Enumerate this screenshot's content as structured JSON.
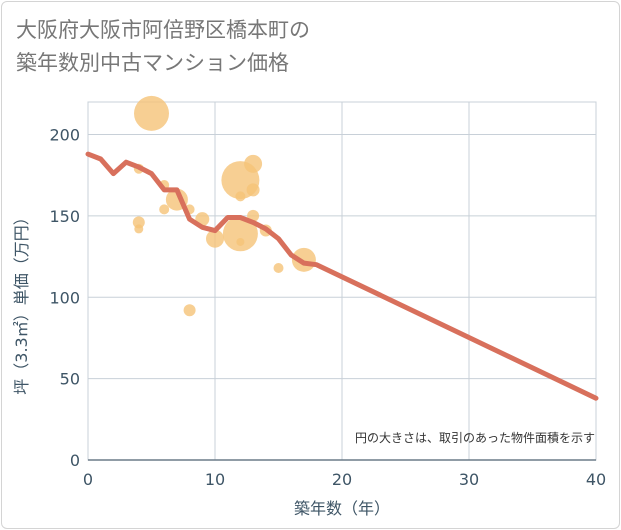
{
  "title_line1": "大阪府大阪市阿倍野区橋本町の",
  "title_line2": "築年数別中古マンション価格",
  "colors": {
    "bubble": "#f5c378",
    "line": "#d8705c",
    "grid": "#c8d0d8",
    "axis_text": "#3e5566"
  },
  "chart_data": {
    "type": "scatter",
    "xlabel": "築年数（年）",
    "ylabel": "坪（3.3㎡）単価（万円）",
    "xlim": [
      0,
      40
    ],
    "ylim": [
      0,
      220
    ],
    "xticks": [
      0,
      10,
      20,
      30,
      40
    ],
    "yticks": [
      0,
      50,
      100,
      150,
      200
    ],
    "grid": true,
    "note": "円の大きさは、取引のあった物件面積を示す",
    "bubbles": [
      {
        "x": 5,
        "y": 213,
        "size": 3.5
      },
      {
        "x": 4,
        "y": 179,
        "size": 1.0
      },
      {
        "x": 6,
        "y": 169,
        "size": 1.0
      },
      {
        "x": 7,
        "y": 160,
        "size": 2.2
      },
      {
        "x": 6,
        "y": 154,
        "size": 1.0
      },
      {
        "x": 8,
        "y": 154,
        "size": 1.0
      },
      {
        "x": 4,
        "y": 146,
        "size": 1.2
      },
      {
        "x": 4,
        "y": 142,
        "size": 0.9
      },
      {
        "x": 9,
        "y": 148,
        "size": 1.4
      },
      {
        "x": 10,
        "y": 136,
        "size": 1.8
      },
      {
        "x": 8,
        "y": 92,
        "size": 1.2
      },
      {
        "x": 12,
        "y": 172,
        "size": 3.8
      },
      {
        "x": 13,
        "y": 182,
        "size": 1.8
      },
      {
        "x": 13,
        "y": 166,
        "size": 1.3
      },
      {
        "x": 12,
        "y": 162,
        "size": 1.0
      },
      {
        "x": 13,
        "y": 150,
        "size": 1.2
      },
      {
        "x": 12,
        "y": 139,
        "size": 3.5
      },
      {
        "x": 12,
        "y": 134,
        "size": 0.8
      },
      {
        "x": 14,
        "y": 141,
        "size": 1.2
      },
      {
        "x": 15,
        "y": 118,
        "size": 1.0
      },
      {
        "x": 17,
        "y": 123,
        "size": 2.4
      }
    ],
    "series": [
      {
        "name": "trend",
        "x": [
          0,
          1,
          2,
          3,
          4,
          5,
          6,
          7,
          8,
          9,
          10,
          11,
          12,
          13,
          14,
          15,
          16,
          17,
          18,
          40
        ],
        "values": [
          188,
          185,
          176,
          183,
          180,
          176,
          166,
          166,
          148,
          143,
          141,
          149,
          149,
          146,
          142,
          136,
          126,
          121,
          120,
          38
        ]
      }
    ]
  }
}
